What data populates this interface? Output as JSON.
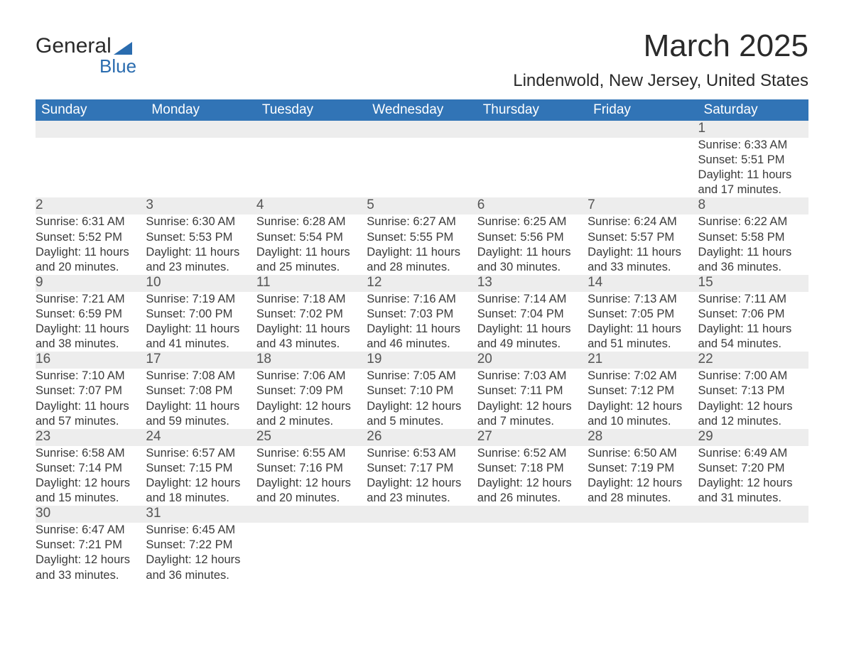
{
  "logo": {
    "top": "General",
    "bottom": "Blue"
  },
  "title": "March 2025",
  "location": "Lindenwold, New Jersey, United States",
  "colors": {
    "header_bg": "#3174b6",
    "header_text": "#ffffff",
    "daynum_bg": "#ededed",
    "row_border": "#3174b6",
    "body_text": "#3a3a3a",
    "logo_accent": "#2a6caf",
    "page_bg": "#ffffff"
  },
  "day_headers": [
    "Sunday",
    "Monday",
    "Tuesday",
    "Wednesday",
    "Thursday",
    "Friday",
    "Saturday"
  ],
  "weeks": [
    [
      null,
      null,
      null,
      null,
      null,
      null,
      {
        "n": "1",
        "sr": "Sunrise: 6:33 AM",
        "ss": "Sunset: 5:51 PM",
        "d1": "Daylight: 11 hours",
        "d2": "and 17 minutes."
      }
    ],
    [
      {
        "n": "2",
        "sr": "Sunrise: 6:31 AM",
        "ss": "Sunset: 5:52 PM",
        "d1": "Daylight: 11 hours",
        "d2": "and 20 minutes."
      },
      {
        "n": "3",
        "sr": "Sunrise: 6:30 AM",
        "ss": "Sunset: 5:53 PM",
        "d1": "Daylight: 11 hours",
        "d2": "and 23 minutes."
      },
      {
        "n": "4",
        "sr": "Sunrise: 6:28 AM",
        "ss": "Sunset: 5:54 PM",
        "d1": "Daylight: 11 hours",
        "d2": "and 25 minutes."
      },
      {
        "n": "5",
        "sr": "Sunrise: 6:27 AM",
        "ss": "Sunset: 5:55 PM",
        "d1": "Daylight: 11 hours",
        "d2": "and 28 minutes."
      },
      {
        "n": "6",
        "sr": "Sunrise: 6:25 AM",
        "ss": "Sunset: 5:56 PM",
        "d1": "Daylight: 11 hours",
        "d2": "and 30 minutes."
      },
      {
        "n": "7",
        "sr": "Sunrise: 6:24 AM",
        "ss": "Sunset: 5:57 PM",
        "d1": "Daylight: 11 hours",
        "d2": "and 33 minutes."
      },
      {
        "n": "8",
        "sr": "Sunrise: 6:22 AM",
        "ss": "Sunset: 5:58 PM",
        "d1": "Daylight: 11 hours",
        "d2": "and 36 minutes."
      }
    ],
    [
      {
        "n": "9",
        "sr": "Sunrise: 7:21 AM",
        "ss": "Sunset: 6:59 PM",
        "d1": "Daylight: 11 hours",
        "d2": "and 38 minutes."
      },
      {
        "n": "10",
        "sr": "Sunrise: 7:19 AM",
        "ss": "Sunset: 7:00 PM",
        "d1": "Daylight: 11 hours",
        "d2": "and 41 minutes."
      },
      {
        "n": "11",
        "sr": "Sunrise: 7:18 AM",
        "ss": "Sunset: 7:02 PM",
        "d1": "Daylight: 11 hours",
        "d2": "and 43 minutes."
      },
      {
        "n": "12",
        "sr": "Sunrise: 7:16 AM",
        "ss": "Sunset: 7:03 PM",
        "d1": "Daylight: 11 hours",
        "d2": "and 46 minutes."
      },
      {
        "n": "13",
        "sr": "Sunrise: 7:14 AM",
        "ss": "Sunset: 7:04 PM",
        "d1": "Daylight: 11 hours",
        "d2": "and 49 minutes."
      },
      {
        "n": "14",
        "sr": "Sunrise: 7:13 AM",
        "ss": "Sunset: 7:05 PM",
        "d1": "Daylight: 11 hours",
        "d2": "and 51 minutes."
      },
      {
        "n": "15",
        "sr": "Sunrise: 7:11 AM",
        "ss": "Sunset: 7:06 PM",
        "d1": "Daylight: 11 hours",
        "d2": "and 54 minutes."
      }
    ],
    [
      {
        "n": "16",
        "sr": "Sunrise: 7:10 AM",
        "ss": "Sunset: 7:07 PM",
        "d1": "Daylight: 11 hours",
        "d2": "and 57 minutes."
      },
      {
        "n": "17",
        "sr": "Sunrise: 7:08 AM",
        "ss": "Sunset: 7:08 PM",
        "d1": "Daylight: 11 hours",
        "d2": "and 59 minutes."
      },
      {
        "n": "18",
        "sr": "Sunrise: 7:06 AM",
        "ss": "Sunset: 7:09 PM",
        "d1": "Daylight: 12 hours",
        "d2": "and 2 minutes."
      },
      {
        "n": "19",
        "sr": "Sunrise: 7:05 AM",
        "ss": "Sunset: 7:10 PM",
        "d1": "Daylight: 12 hours",
        "d2": "and 5 minutes."
      },
      {
        "n": "20",
        "sr": "Sunrise: 7:03 AM",
        "ss": "Sunset: 7:11 PM",
        "d1": "Daylight: 12 hours",
        "d2": "and 7 minutes."
      },
      {
        "n": "21",
        "sr": "Sunrise: 7:02 AM",
        "ss": "Sunset: 7:12 PM",
        "d1": "Daylight: 12 hours",
        "d2": "and 10 minutes."
      },
      {
        "n": "22",
        "sr": "Sunrise: 7:00 AM",
        "ss": "Sunset: 7:13 PM",
        "d1": "Daylight: 12 hours",
        "d2": "and 12 minutes."
      }
    ],
    [
      {
        "n": "23",
        "sr": "Sunrise: 6:58 AM",
        "ss": "Sunset: 7:14 PM",
        "d1": "Daylight: 12 hours",
        "d2": "and 15 minutes."
      },
      {
        "n": "24",
        "sr": "Sunrise: 6:57 AM",
        "ss": "Sunset: 7:15 PM",
        "d1": "Daylight: 12 hours",
        "d2": "and 18 minutes."
      },
      {
        "n": "25",
        "sr": "Sunrise: 6:55 AM",
        "ss": "Sunset: 7:16 PM",
        "d1": "Daylight: 12 hours",
        "d2": "and 20 minutes."
      },
      {
        "n": "26",
        "sr": "Sunrise: 6:53 AM",
        "ss": "Sunset: 7:17 PM",
        "d1": "Daylight: 12 hours",
        "d2": "and 23 minutes."
      },
      {
        "n": "27",
        "sr": "Sunrise: 6:52 AM",
        "ss": "Sunset: 7:18 PM",
        "d1": "Daylight: 12 hours",
        "d2": "and 26 minutes."
      },
      {
        "n": "28",
        "sr": "Sunrise: 6:50 AM",
        "ss": "Sunset: 7:19 PM",
        "d1": "Daylight: 12 hours",
        "d2": "and 28 minutes."
      },
      {
        "n": "29",
        "sr": "Sunrise: 6:49 AM",
        "ss": "Sunset: 7:20 PM",
        "d1": "Daylight: 12 hours",
        "d2": "and 31 minutes."
      }
    ],
    [
      {
        "n": "30",
        "sr": "Sunrise: 6:47 AM",
        "ss": "Sunset: 7:21 PM",
        "d1": "Daylight: 12 hours",
        "d2": "and 33 minutes."
      },
      {
        "n": "31",
        "sr": "Sunrise: 6:45 AM",
        "ss": "Sunset: 7:22 PM",
        "d1": "Daylight: 12 hours",
        "d2": "and 36 minutes."
      },
      null,
      null,
      null,
      null,
      null
    ]
  ]
}
